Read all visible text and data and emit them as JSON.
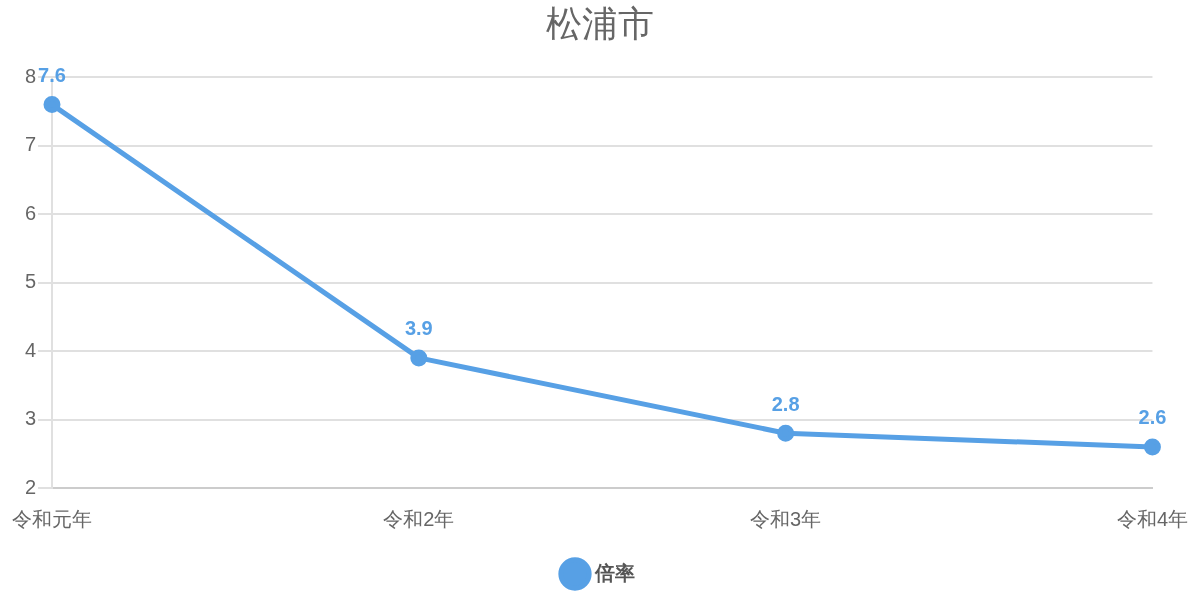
{
  "chart_data": {
    "type": "line",
    "title": "松浦市",
    "categories": [
      "令和元年",
      "令和2年",
      "令和3年",
      "令和4年"
    ],
    "series": [
      {
        "name": "倍率",
        "color": "#57a0e5",
        "values": [
          7.6,
          3.9,
          2.8,
          2.6
        ]
      }
    ],
    "ylim": [
      2,
      8
    ],
    "yticks": [
      2,
      3,
      4,
      5,
      6,
      7,
      8
    ],
    "grid": "y",
    "legend": "bottom",
    "marker": "circle",
    "data_labels": true
  }
}
